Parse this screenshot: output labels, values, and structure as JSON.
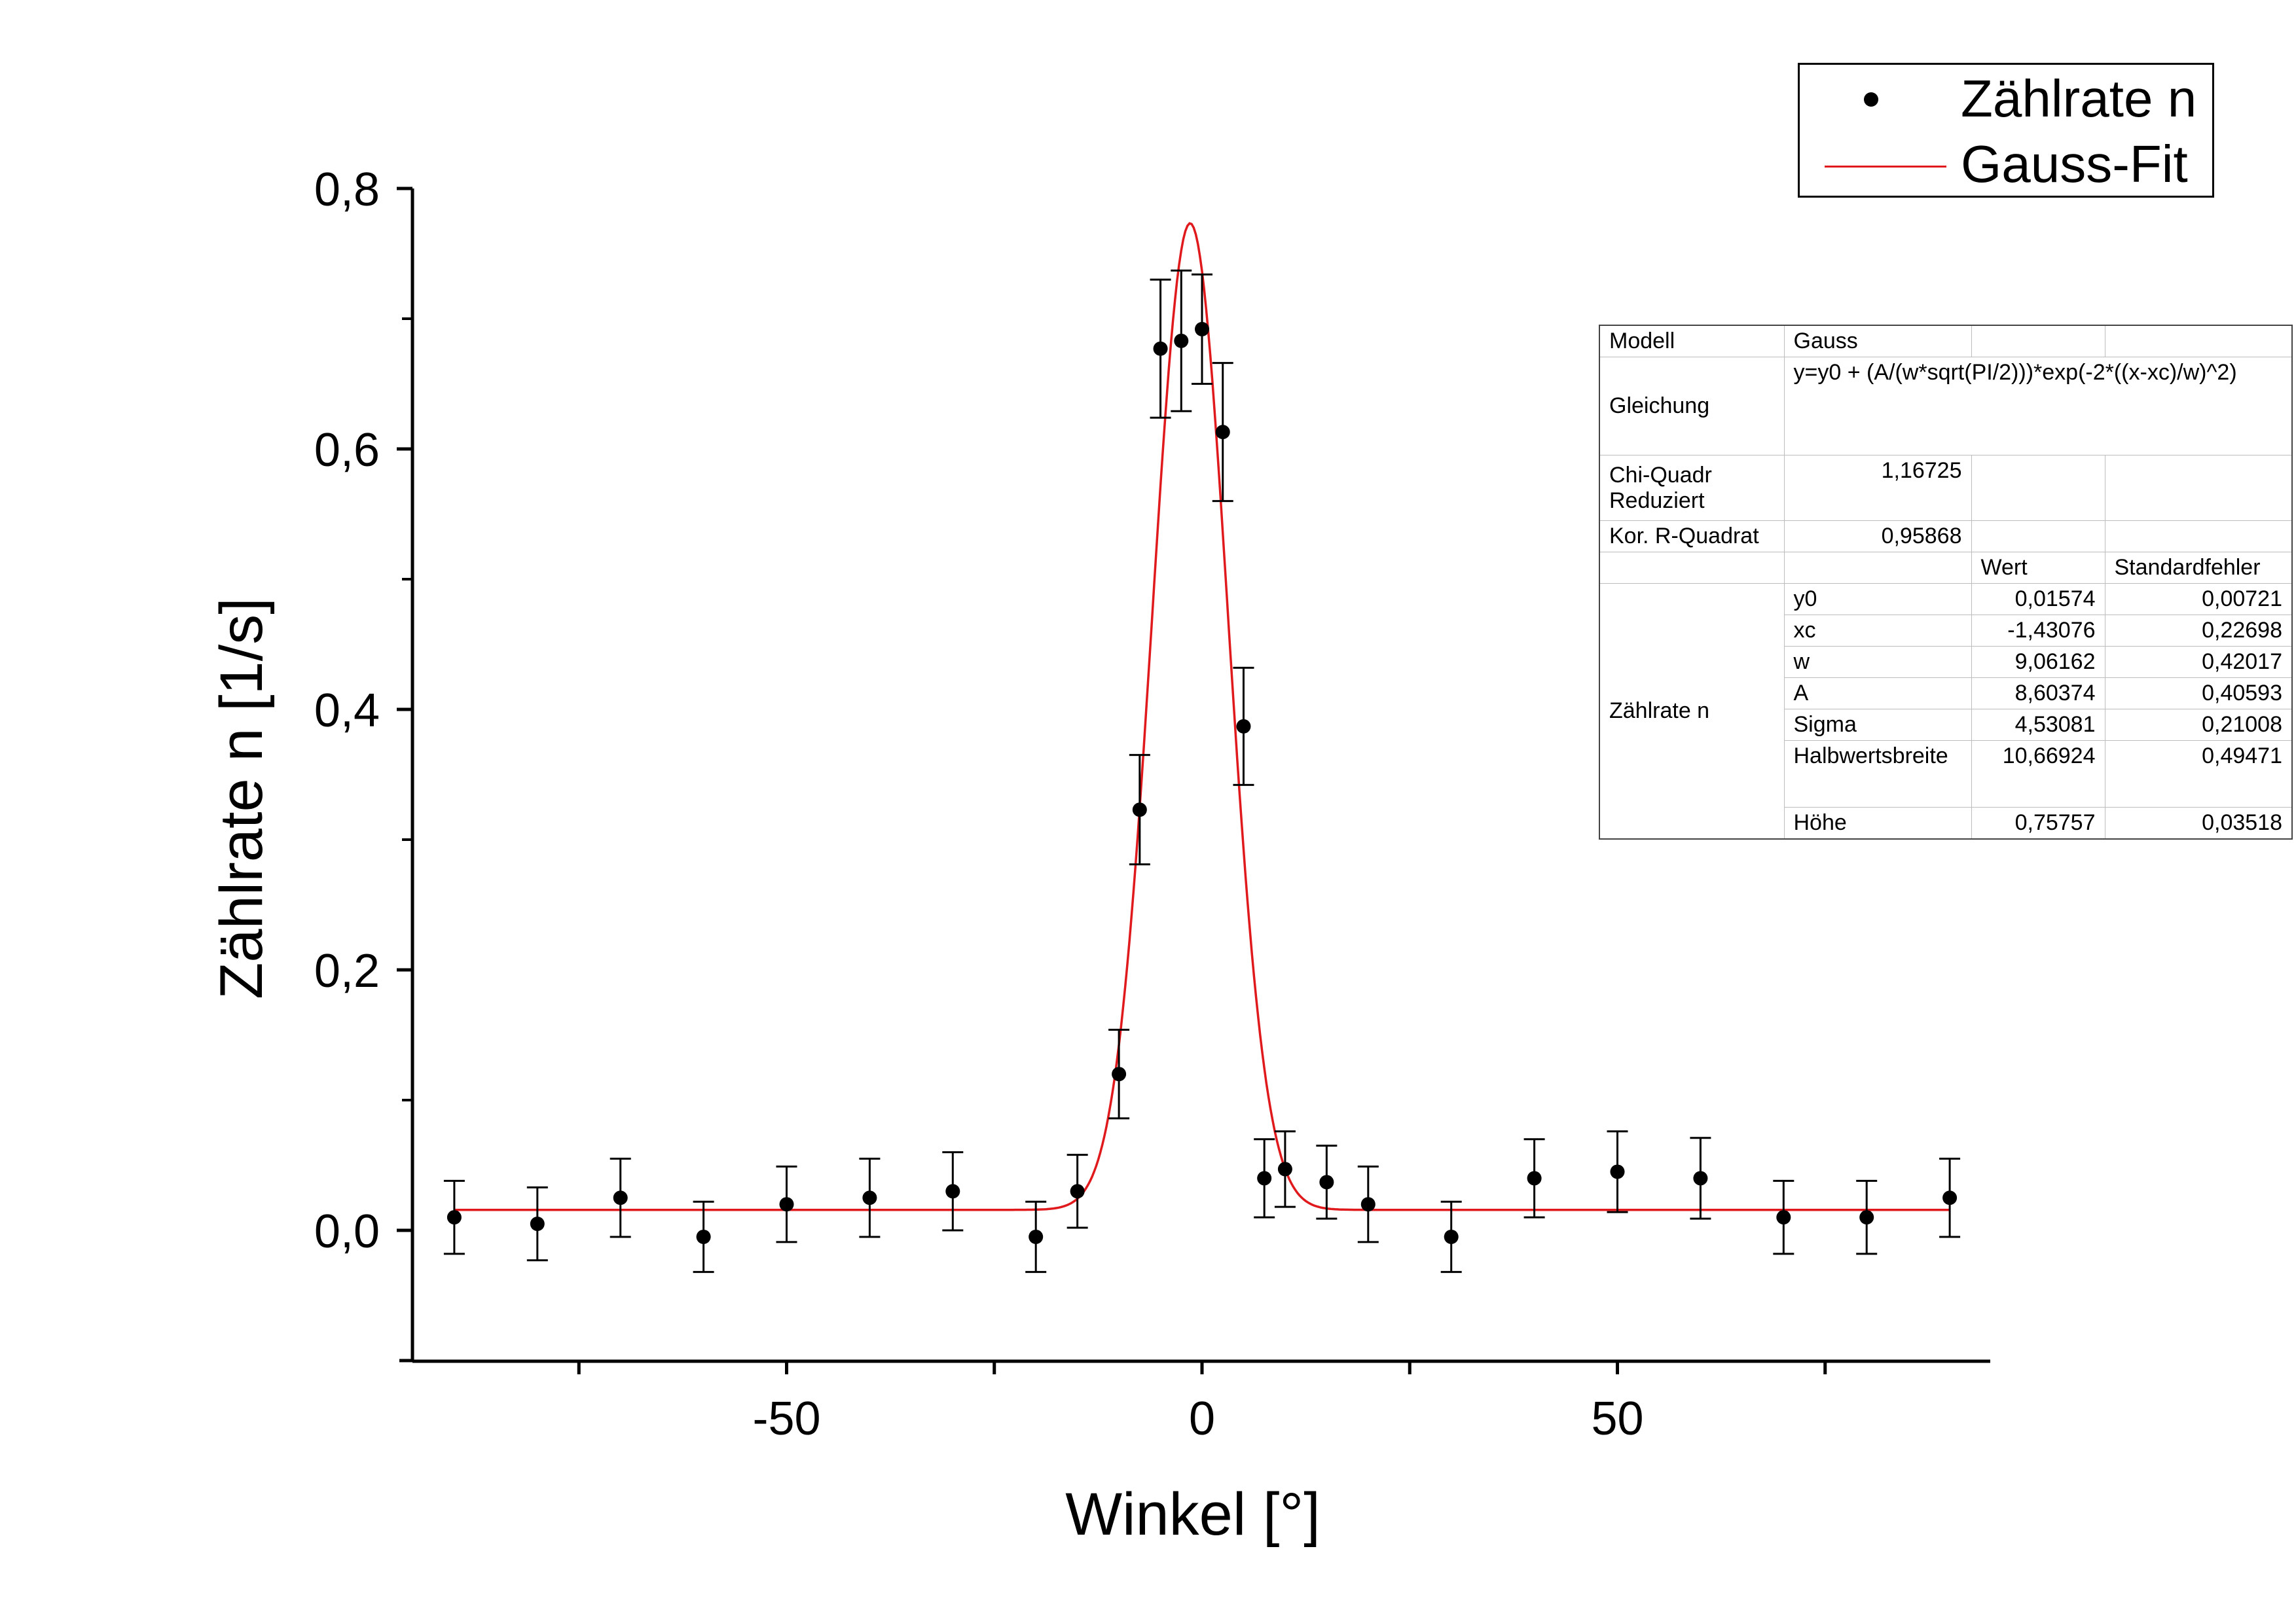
{
  "chart_data": {
    "type": "scatter",
    "xlabel": "Winkel [°]",
    "ylabel": "Zählrate n [1/s]",
    "xlim": [
      -95,
      95
    ],
    "ylim": [
      -0.1,
      0.8
    ],
    "x_ticks": [
      -50,
      0,
      50
    ],
    "x_tick_labels": [
      "-50",
      "0",
      "50"
    ],
    "x_minor_ticks": [
      -75,
      -25,
      25,
      75
    ],
    "y_ticks": [
      0.0,
      0.2,
      0.4,
      0.6,
      0.8
    ],
    "y_tick_labels": [
      "0,0",
      "0,2",
      "0,4",
      "0,6",
      "0,8"
    ],
    "y_minor_ticks": [
      -0.1,
      0.1,
      0.3,
      0.5,
      0.7
    ],
    "grid": false,
    "legend_position": "top-right",
    "series": [
      {
        "name": "Zählrate n",
        "kind": "points-with-errorbars",
        "color": "#000000",
        "x": [
          -90,
          -80,
          -70,
          -60,
          -50,
          -40,
          -30,
          -20,
          -15,
          -10,
          -7.5,
          -5,
          -2.5,
          0,
          2.5,
          5,
          7.5,
          10,
          15,
          20,
          30,
          40,
          50,
          60,
          70,
          80,
          90
        ],
        "y": [
          0.01,
          0.005,
          0.025,
          -0.005,
          0.02,
          0.025,
          0.03,
          -0.005,
          0.03,
          0.12,
          0.323,
          0.677,
          0.683,
          0.692,
          0.613,
          0.387,
          0.04,
          0.047,
          0.037,
          0.02,
          -0.005,
          0.04,
          0.045,
          0.04,
          0.01,
          0.01,
          0.025
        ],
        "yerr": [
          0.028,
          0.028,
          0.03,
          0.027,
          0.029,
          0.03,
          0.03,
          0.027,
          0.028,
          0.034,
          0.042,
          0.053,
          0.054,
          0.042,
          0.053,
          0.045,
          0.03,
          0.029,
          0.028,
          0.029,
          0.027,
          0.03,
          0.031,
          0.031,
          0.028,
          0.028,
          0.03
        ]
      },
      {
        "name": "Gauss-Fit",
        "kind": "fit-curve",
        "color": "#e0191c",
        "model": {
          "y0": 0.01574,
          "xc": -1.43076,
          "w": 9.06162,
          "A": 8.60374
        },
        "x_range": [
          -90,
          90
        ]
      }
    ]
  },
  "legend": {
    "entries": [
      "Zählrate n",
      "Gauss-Fit"
    ]
  },
  "fit_table": {
    "modell_label": "Modell",
    "modell_value": "Gauss",
    "gleichung_label": "Gleichung",
    "gleichung_value": "y=y0 + (A/(w*sqrt(PI/2)))*exp(-2*((x-xc)/w)^2)",
    "chi_label_1": "Chi-Quadr",
    "chi_label_2": "Reduziert",
    "chi_value": "1,16725",
    "r2_label": "Kor. R-Quadrat",
    "r2_value": "0,95868",
    "col_wert": "Wert",
    "col_fehler": "Standardfehler",
    "group_label": "Zählrate n",
    "params": [
      {
        "name": "y0",
        "wert": "0,01574",
        "fehler": "0,00721"
      },
      {
        "name": "xc",
        "wert": "-1,43076",
        "fehler": "0,22698"
      },
      {
        "name": "w",
        "wert": "9,06162",
        "fehler": "0,42017"
      },
      {
        "name": "A",
        "wert": "8,60374",
        "fehler": "0,40593"
      },
      {
        "name": "Sigma",
        "wert": "4,53081",
        "fehler": "0,21008"
      },
      {
        "name": "Halbwertsbreite",
        "wert": "10,66924",
        "fehler": "0,49471"
      },
      {
        "name": "Höhe",
        "wert": "0,75757",
        "fehler": "0,03518"
      }
    ]
  }
}
